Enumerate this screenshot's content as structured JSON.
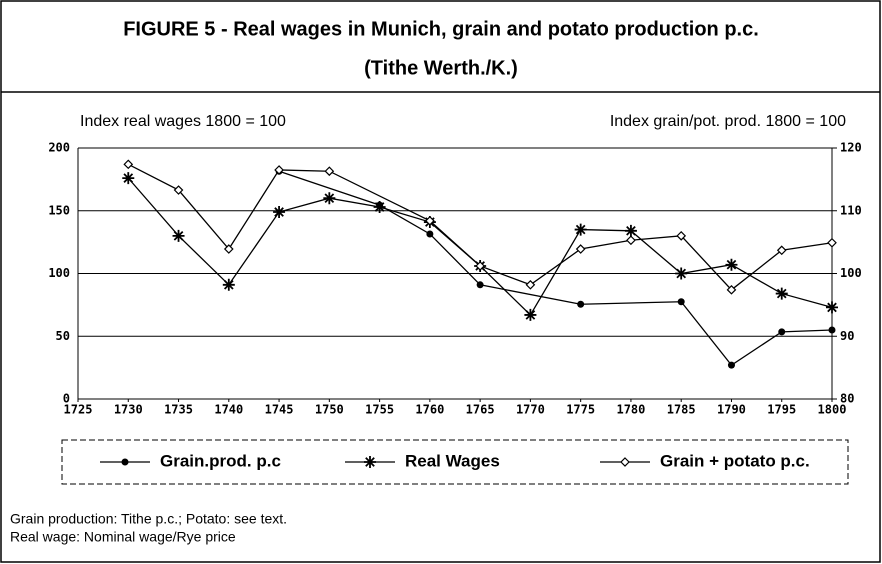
{
  "chart_data": {
    "type": "line",
    "title": "FIGURE 5 - Real wages in Munich, grain and potato production p.c.",
    "subtitle": "(Tithe Werth./K.)",
    "y_label": "Index real wages 1800 = 100",
    "y2_label": "Index grain/pot. prod. 1800 = 100",
    "xlim": [
      1725,
      1800
    ],
    "xticks": [
      1725,
      1730,
      1735,
      1740,
      1745,
      1750,
      1755,
      1760,
      1765,
      1770,
      1775,
      1780,
      1785,
      1790,
      1795,
      1800
    ],
    "ylim": [
      0,
      200
    ],
    "yticks": [
      0,
      50,
      100,
      150,
      200
    ],
    "y2lim": [
      80,
      120
    ],
    "y2ticks": [
      80,
      90,
      100,
      110,
      120
    ],
    "grid": true,
    "series": [
      {
        "name": "Grain.prod. p.c",
        "color": "#000000",
        "marker": "dot",
        "axis": "y2",
        "x": [
          1745,
          1755,
          1760,
          1765,
          1775,
          1785,
          1790,
          1795,
          1800
        ],
        "values": [
          116.3,
          110.9,
          106.3,
          98.2,
          95.1,
          95.5,
          85.4,
          90.7,
          91.0
        ]
      },
      {
        "name": "Real Wages",
        "color": "#000000",
        "marker": "star",
        "x": [
          1730,
          1735,
          1740,
          1745,
          1750,
          1755,
          1760,
          1765,
          1770,
          1775,
          1780,
          1785,
          1790,
          1795,
          1800
        ],
        "values": [
          176,
          130,
          91,
          149,
          160,
          153,
          141,
          106,
          67,
          135,
          134,
          100,
          107,
          84,
          73
        ]
      },
      {
        "name": "Grain + potato p.c.",
        "color": "#000000",
        "marker": "diamond",
        "axis": "y2",
        "x": [
          1730,
          1735,
          1740,
          1745,
          1750,
          1760,
          1765,
          1770,
          1775,
          1780,
          1785,
          1790,
          1795,
          1800
        ],
        "values": [
          117.4,
          113.3,
          103.9,
          116.5,
          116.3,
          108.4,
          101.2,
          98.2,
          103.9,
          105.3,
          106.0,
          97.4,
          103.7,
          104.9
        ]
      }
    ],
    "notes": [
      "Grain production: Tithe p.c.; Potato: see text.",
      "Real wage: Nominal wage/Rye price"
    ]
  }
}
